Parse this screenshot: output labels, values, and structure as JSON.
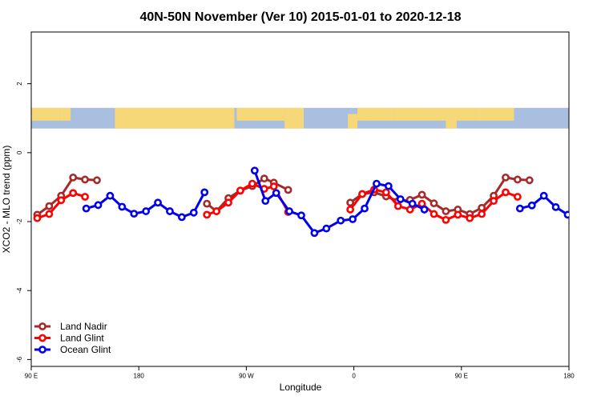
{
  "chart_data": {
    "type": "line",
    "title": "40N-50N November (Ver 10)   2015-01-01 to 2020-12-18",
    "xlabel": "Longitude",
    "ylabel": "XCO2 - MLO trend (ppm)",
    "xlim": [
      90,
      540
    ],
    "ylim": [
      -6.2,
      3.5
    ],
    "x_ticks": [
      {
        "value": 90,
        "label": "90 E"
      },
      {
        "value": 180,
        "label": "180"
      },
      {
        "value": 270,
        "label": "90 W"
      },
      {
        "value": 360,
        "label": "0"
      },
      {
        "value": 450,
        "label": "90 E"
      },
      {
        "value": 540,
        "label": "180"
      }
    ],
    "y_ticks": [
      {
        "value": 2,
        "label": "2"
      },
      {
        "value": 0,
        "label": "0"
      },
      {
        "value": -2,
        "label": "-2"
      },
      {
        "value": -4,
        "label": "-4"
      },
      {
        "value": -6,
        "label": "-6"
      }
    ],
    "map_band": {
      "y_min": 0.7,
      "y_max": 1.3,
      "ocean_color": "#a8bfe0",
      "land_color": "#f7d878"
    },
    "legend": {
      "placement": "bottom-left"
    },
    "series": [
      {
        "name": "Land Nadir",
        "color": "#a52a2a",
        "segments": [
          [
            [
              95,
              -1.8
            ],
            [
              105,
              -1.55
            ],
            [
              115,
              -1.25
            ],
            [
              125,
              -0.72
            ],
            [
              135,
              -0.78
            ],
            [
              145,
              -0.8
            ]
          ],
          [
            [
              237,
              -1.48
            ],
            [
              245,
              -1.7
            ],
            [
              255,
              -1.32
            ],
            [
              265,
              -1.1
            ],
            [
              275,
              -0.97
            ],
            [
              285,
              -0.75
            ],
            [
              293,
              -0.87
            ],
            [
              305,
              -1.08
            ]
          ],
          [
            [
              357,
              -1.45
            ],
            [
              367,
              -1.2
            ],
            [
              377,
              -1.15
            ],
            [
              387,
              -1.27
            ],
            [
              397,
              -1.4
            ],
            [
              407,
              -1.37
            ],
            [
              417,
              -1.22
            ],
            [
              427,
              -1.47
            ],
            [
              437,
              -1.7
            ],
            [
              447,
              -1.65
            ],
            [
              457,
              -1.78
            ],
            [
              467,
              -1.6
            ],
            [
              477,
              -1.25
            ],
            [
              487,
              -0.72
            ],
            [
              497,
              -0.78
            ],
            [
              507,
              -0.8
            ]
          ]
        ]
      },
      {
        "name": "Land Glint",
        "color": "#ff0000",
        "segments": [
          [
            [
              95,
              -1.9
            ],
            [
              105,
              -1.78
            ],
            [
              115,
              -1.38
            ],
            [
              125,
              -1.17
            ],
            [
              135,
              -1.28
            ]
          ],
          [
            [
              237,
              -1.8
            ],
            [
              245,
              -1.7
            ],
            [
              255,
              -1.45
            ],
            [
              265,
              -1.1
            ],
            [
              275,
              -0.9
            ],
            [
              285,
              -1.05
            ],
            [
              293,
              -0.98
            ],
            [
              305,
              -1.72
            ]
          ],
          [
            [
              357,
              -1.65
            ],
            [
              367,
              -1.2
            ],
            [
              377,
              -1.07
            ],
            [
              387,
              -1.15
            ],
            [
              397,
              -1.55
            ],
            [
              407,
              -1.65
            ],
            [
              417,
              -1.48
            ],
            [
              427,
              -1.78
            ],
            [
              437,
              -1.95
            ],
            [
              447,
              -1.8
            ],
            [
              457,
              -1.9
            ],
            [
              467,
              -1.78
            ],
            [
              477,
              -1.4
            ],
            [
              487,
              -1.15
            ],
            [
              497,
              -1.28
            ]
          ]
        ]
      },
      {
        "name": "Ocean Glint",
        "color": "#0000ee",
        "segments": [
          [
            [
              136,
              -1.62
            ],
            [
              146,
              -1.52
            ],
            [
              156,
              -1.25
            ],
            [
              166,
              -1.57
            ],
            [
              176,
              -1.77
            ],
            [
              186,
              -1.7
            ],
            [
              196,
              -1.45
            ],
            [
              206,
              -1.7
            ],
            [
              216,
              -1.87
            ],
            [
              226,
              -1.74
            ],
            [
              235,
              -1.15
            ]
          ],
          [
            [
              277,
              -0.52
            ],
            [
              286,
              -1.4
            ],
            [
              295,
              -1.17
            ],
            [
              306,
              -1.7
            ],
            [
              316,
              -1.82
            ],
            [
              327,
              -2.33
            ],
            [
              337,
              -2.2
            ],
            [
              349,
              -1.97
            ],
            [
              359,
              -1.93
            ],
            [
              369,
              -1.62
            ],
            [
              379,
              -0.9
            ],
            [
              389,
              -0.97
            ],
            [
              399,
              -1.35
            ],
            [
              409,
              -1.48
            ],
            [
              419,
              -1.65
            ]
          ],
          [
            [
              499,
              -1.62
            ],
            [
              509,
              -1.53
            ],
            [
              519,
              -1.25
            ],
            [
              529,
              -1.58
            ],
            [
              539,
              -1.8
            ]
          ]
        ]
      }
    ]
  }
}
